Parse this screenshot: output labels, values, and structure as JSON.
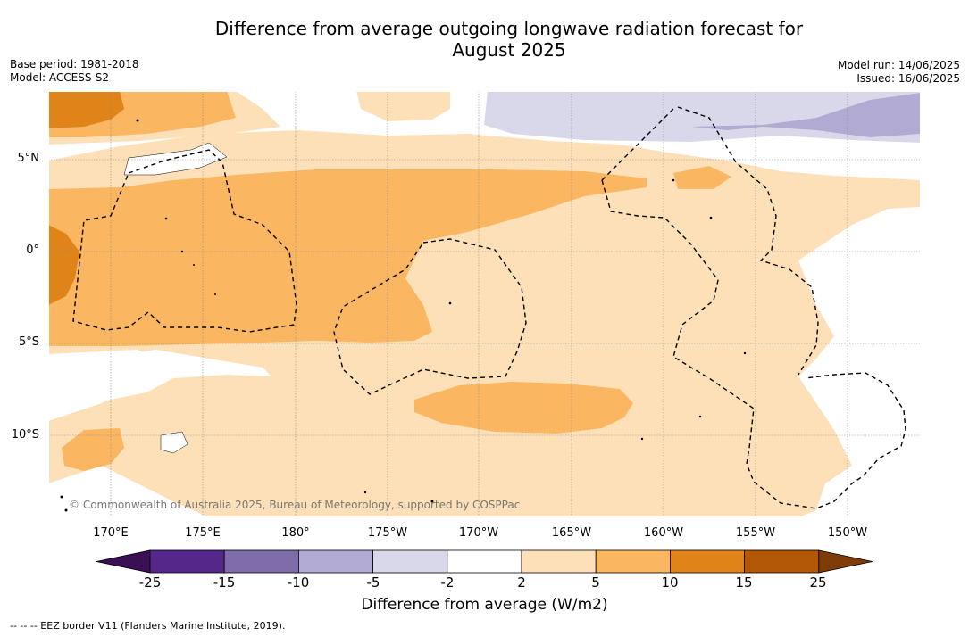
{
  "title_line1": "Difference from average outgoing longwave radiation forecast for",
  "title_line2": "August 2025",
  "meta_left": {
    "base_period": "Base period: 1981-2018",
    "model": "Model: ACCESS-S2"
  },
  "meta_right": {
    "model_run": "Model run: 14/06/2025",
    "issued": "Issued: 16/06/2025"
  },
  "lat_labels": [
    "5°N",
    "0°",
    "5°S",
    "10°S"
  ],
  "lon_labels": [
    "170°E",
    "175°E",
    "180°",
    "175°W",
    "170°W",
    "165°W",
    "160°W",
    "155°W",
    "150°W"
  ],
  "copyright": "© Commonwealth of Australia 2025, Bureau of Meteorology, supported by COSPPac",
  "colorbar": {
    "label": "Difference from average (W/m2)",
    "ticks": [
      "-25",
      "-15",
      "-10",
      "-5",
      "-2",
      "2",
      "5",
      "10",
      "15",
      "25"
    ],
    "colors": [
      "#3b0f55",
      "#56278a",
      "#7e6daa",
      "#b1aad2",
      "#d8d8ea",
      "#ffffff",
      "#fde0b7",
      "#fbb661",
      "#e08318",
      "#b35806",
      "#7f3b08"
    ]
  },
  "footnote": "--  --  -- EEZ border V11 (Flanders Marine Institute, 2019)."
}
